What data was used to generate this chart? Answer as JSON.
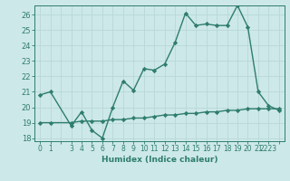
{
  "line1_x": [
    0,
    1,
    3,
    4,
    5,
    6,
    7,
    8,
    9,
    10,
    11,
    12,
    13,
    14,
    15,
    16,
    17,
    18,
    19,
    20,
    21,
    22,
    23
  ],
  "line1_y": [
    20.8,
    21.0,
    18.8,
    19.7,
    18.5,
    18.0,
    20.0,
    21.7,
    21.1,
    22.5,
    22.4,
    22.8,
    24.2,
    26.1,
    25.3,
    25.4,
    25.3,
    25.3,
    26.6,
    25.2,
    21.0,
    20.1,
    19.8
  ],
  "line2_x": [
    0,
    1,
    3,
    4,
    5,
    6,
    7,
    8,
    9,
    10,
    11,
    12,
    13,
    14,
    15,
    16,
    17,
    18,
    19,
    20,
    21,
    22,
    23
  ],
  "line2_y": [
    19.0,
    19.0,
    19.0,
    19.1,
    19.1,
    19.1,
    19.2,
    19.2,
    19.3,
    19.3,
    19.4,
    19.5,
    19.5,
    19.6,
    19.6,
    19.7,
    19.7,
    19.8,
    19.8,
    19.9,
    19.9,
    19.9,
    19.9
  ],
  "line_color": "#2e7d6e",
  "bg_color": "#cde8e8",
  "grid_color": "#b8d8d8",
  "xlabel": "Humidex (Indice chaleur)",
  "xlim": [
    -0.5,
    23.5
  ],
  "ylim": [
    17.8,
    26.6
  ],
  "yticks": [
    18,
    19,
    20,
    21,
    22,
    23,
    24,
    25,
    26
  ],
  "xtick_labels": [
    "0",
    "1",
    "",
    "3",
    "4",
    "5",
    "6",
    "7",
    "8",
    "9",
    "10",
    "11",
    "12",
    "13",
    "14",
    "15",
    "16",
    "17",
    "18",
    "19",
    "20",
    "21",
    "2223"
  ],
  "marker": "D",
  "markersize": 2.2,
  "linewidth": 1.0,
  "font_color": "#2e7d6e",
  "xlabel_fontsize": 6.5,
  "tick_fontsize": 5.5,
  "ytick_fontsize": 6.0
}
